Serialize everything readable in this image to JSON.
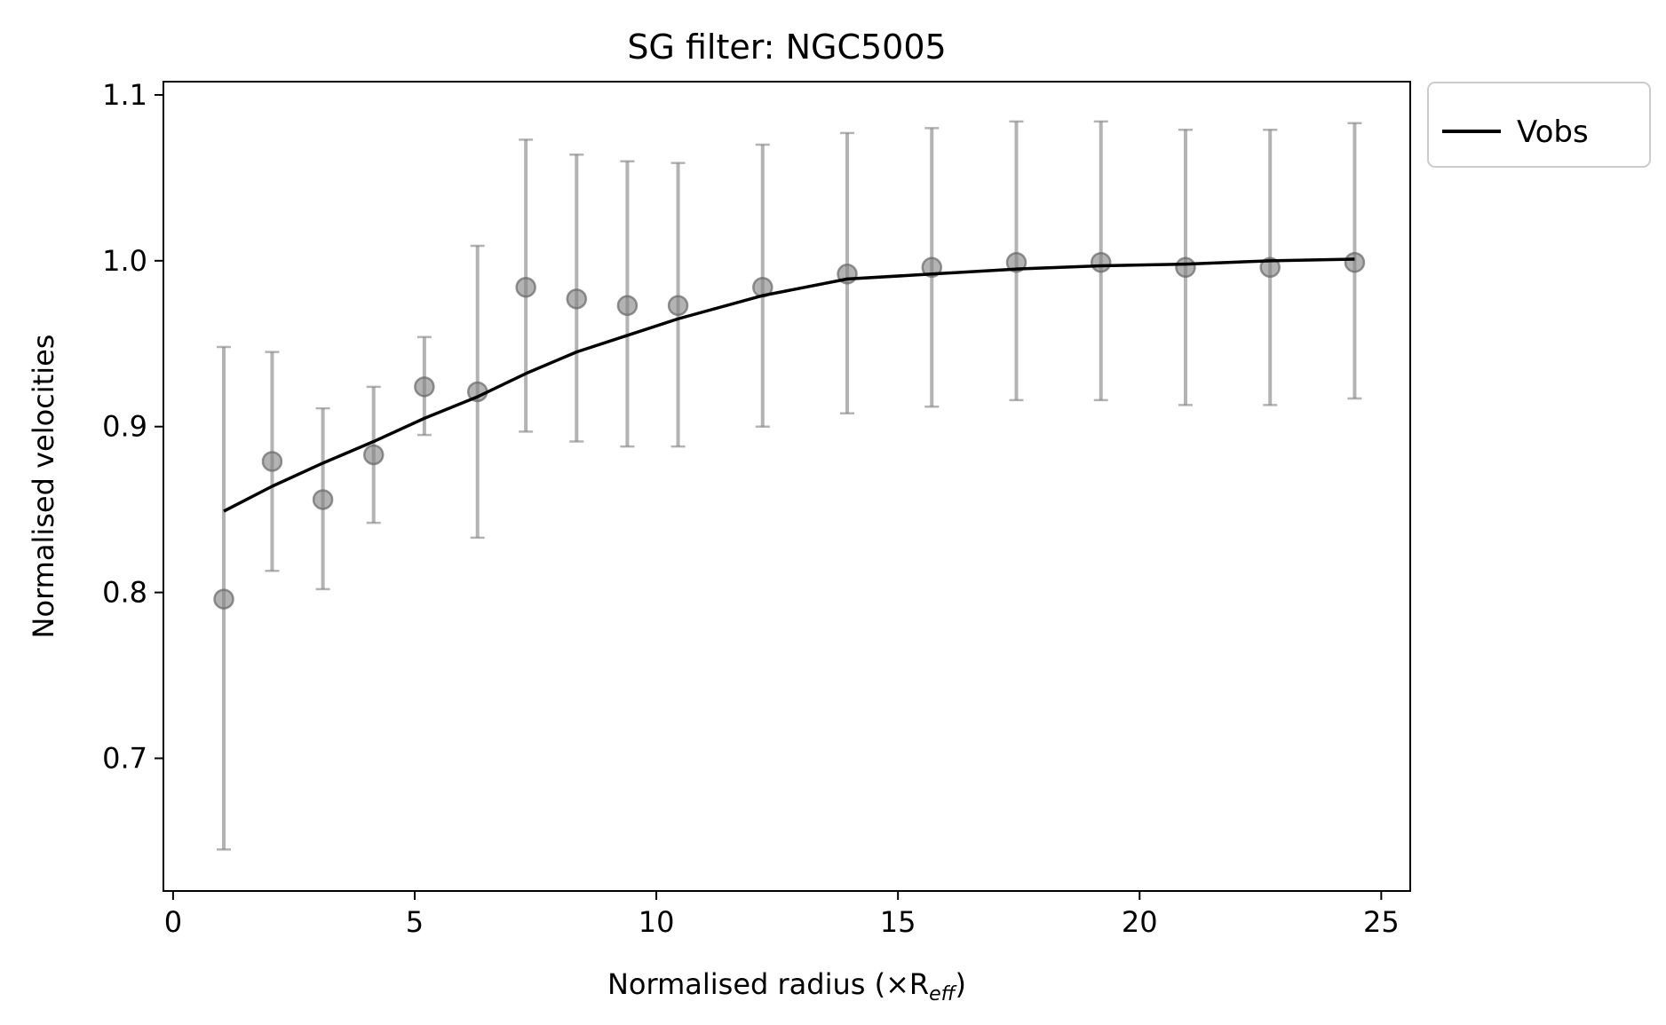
{
  "chart_data": {
    "type": "scatter",
    "title": "SG filter: NGC5005",
    "xlabel": "Normalised radius (×R",
    "xlabel_sub": "eff",
    "xlabel_close": ")",
    "ylabel": "Normalised velocities",
    "xlim": [
      -0.2,
      25.6
    ],
    "ylim": [
      0.62,
      1.108
    ],
    "xticks": [
      0,
      5,
      10,
      15,
      20,
      25
    ],
    "xtick_labels": [
      "0",
      "5",
      "10",
      "15",
      "20",
      "25"
    ],
    "yticks": [
      0.7,
      0.8,
      0.9,
      1.0,
      1.1
    ],
    "ytick_labels": [
      "0.7",
      "0.8",
      "0.9",
      "1.0",
      "1.1"
    ],
    "grid": false,
    "legend": {
      "position": "outside-top-right",
      "entries": [
        "Vobs"
      ]
    },
    "series": [
      {
        "name": "Vobs",
        "kind": "line",
        "color": "#000000",
        "x": [
          1.05,
          2.05,
          3.1,
          4.15,
          5.2,
          6.3,
          7.3,
          8.35,
          9.4,
          10.45,
          12.2,
          13.95,
          15.7,
          17.45,
          19.2,
          20.95,
          22.7,
          24.45
        ],
        "y": [
          0.849,
          0.864,
          0.878,
          0.891,
          0.905,
          0.918,
          0.932,
          0.945,
          0.955,
          0.965,
          0.979,
          0.989,
          0.992,
          0.995,
          0.997,
          0.998,
          1.0,
          1.001
        ]
      },
      {
        "kind": "errorbar-points",
        "color": "#808080",
        "x": [
          1.05,
          2.05,
          3.1,
          4.15,
          5.2,
          6.3,
          7.3,
          8.35,
          9.4,
          10.45,
          12.2,
          13.95,
          15.7,
          17.45,
          19.2,
          20.95,
          22.7,
          24.45
        ],
        "y": [
          0.796,
          0.879,
          0.856,
          0.883,
          0.924,
          0.921,
          0.984,
          0.977,
          0.973,
          0.973,
          0.984,
          0.992,
          0.996,
          0.999,
          0.999,
          0.996,
          0.996,
          0.999
        ],
        "yerr_low": [
          0.645,
          0.813,
          0.802,
          0.842,
          0.895,
          0.833,
          0.897,
          0.891,
          0.888,
          0.888,
          0.9,
          0.908,
          0.912,
          0.916,
          0.916,
          0.913,
          0.913,
          0.917
        ],
        "yerr_high": [
          0.948,
          0.945,
          0.911,
          0.924,
          0.954,
          1.009,
          1.073,
          1.064,
          1.06,
          1.059,
          1.07,
          1.077,
          1.08,
          1.084,
          1.084,
          1.079,
          1.079,
          1.083
        ]
      }
    ]
  }
}
